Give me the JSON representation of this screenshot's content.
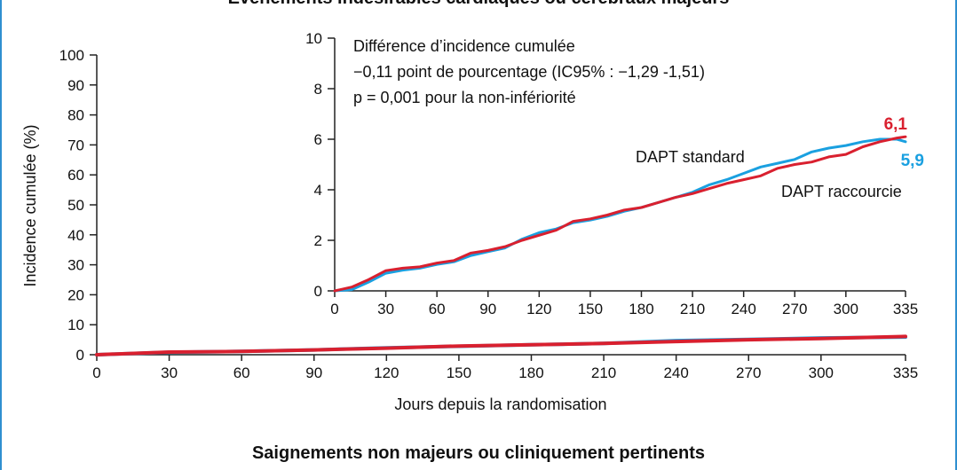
{
  "header": {
    "title": "Événements indésirables cardiaques ou cérébraux majeurs",
    "next_title": "Saignements non majeurs ou cliniquement pertinents"
  },
  "colors": {
    "red": "#d9202f",
    "blue": "#1aa0e0",
    "axis": "#222222",
    "frame": "#2f8fd0"
  },
  "chart_data": [
    {
      "type": "line",
      "xlabel": "Jours depuis la randomisation",
      "ylabel": "Incidence cumulée (%)",
      "xlim": [
        0,
        335
      ],
      "ylim": [
        0,
        100
      ],
      "xticks": [
        0,
        30,
        60,
        90,
        120,
        150,
        180,
        210,
        240,
        270,
        300,
        335
      ],
      "yticks": [
        0,
        10,
        20,
        30,
        40,
        50,
        60,
        70,
        80,
        90,
        100
      ],
      "grid": false,
      "series": [
        {
          "name": "DAPT standard",
          "color": "#1aa0e0",
          "x": [
            0,
            30,
            60,
            90,
            120,
            150,
            180,
            210,
            240,
            270,
            300,
            335
          ],
          "y": [
            0,
            0.8,
            1.1,
            1.6,
            2.3,
            2.8,
            3.3,
            3.8,
            4.7,
            5.1,
            5.6,
            5.9
          ]
        },
        {
          "name": "DAPT raccourcie",
          "color": "#d9202f",
          "x": [
            0,
            30,
            60,
            90,
            120,
            150,
            180,
            210,
            240,
            270,
            300,
            335
          ],
          "y": [
            0,
            0.9,
            1.1,
            1.6,
            2.2,
            2.9,
            3.3,
            3.8,
            4.4,
            5.0,
            5.4,
            6.1
          ]
        }
      ]
    },
    {
      "type": "line",
      "xlim": [
        0,
        335
      ],
      "ylim": [
        0,
        10
      ],
      "xticks": [
        0,
        30,
        60,
        90,
        120,
        150,
        180,
        210,
        240,
        270,
        300,
        335
      ],
      "yticks": [
        0,
        2,
        4,
        6,
        8,
        10
      ],
      "grid": false,
      "annotation": [
        "Différence d’incidence cumulée",
        "−0,11 point de pourcentage (IC95% : −1,29 -1,51)",
        "p = 0,001 pour la non-infériorité"
      ],
      "end_labels": {
        "red": "6,1",
        "blue": "5,9"
      },
      "series": [
        {
          "name": "DAPT standard",
          "color": "#1aa0e0",
          "x": [
            0,
            10,
            20,
            30,
            40,
            50,
            60,
            70,
            80,
            90,
            100,
            110,
            120,
            130,
            140,
            150,
            160,
            170,
            180,
            190,
            200,
            210,
            220,
            230,
            240,
            250,
            260,
            270,
            280,
            290,
            300,
            310,
            320,
            330,
            335
          ],
          "y": [
            0,
            0.05,
            0.35,
            0.7,
            0.82,
            0.9,
            1.05,
            1.15,
            1.4,
            1.55,
            1.7,
            2.05,
            2.3,
            2.45,
            2.7,
            2.8,
            2.95,
            3.15,
            3.3,
            3.5,
            3.7,
            3.9,
            4.2,
            4.4,
            4.65,
            4.9,
            5.05,
            5.2,
            5.5,
            5.65,
            5.75,
            5.9,
            6.0,
            6.0,
            5.9
          ]
        },
        {
          "name": "DAPT raccourcie",
          "color": "#d9202f",
          "x": [
            0,
            10,
            20,
            30,
            40,
            50,
            60,
            70,
            80,
            90,
            100,
            110,
            120,
            130,
            140,
            150,
            160,
            170,
            180,
            190,
            200,
            210,
            220,
            230,
            240,
            250,
            260,
            270,
            280,
            290,
            300,
            310,
            320,
            330,
            335
          ],
          "y": [
            0,
            0.15,
            0.45,
            0.8,
            0.9,
            0.95,
            1.1,
            1.2,
            1.5,
            1.6,
            1.75,
            2.0,
            2.2,
            2.4,
            2.75,
            2.85,
            3.0,
            3.2,
            3.3,
            3.5,
            3.7,
            3.85,
            4.05,
            4.25,
            4.4,
            4.55,
            4.85,
            5.0,
            5.1,
            5.3,
            5.4,
            5.7,
            5.9,
            6.05,
            6.1
          ]
        }
      ]
    }
  ]
}
